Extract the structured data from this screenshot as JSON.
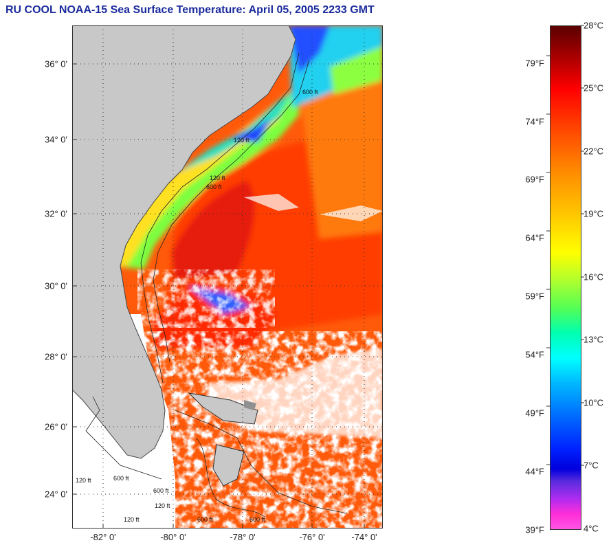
{
  "title": "RU COOL  NOAA-15  Sea Surface Temperature:  April 05, 2005 2233 GMT",
  "map": {
    "lat_labels": [
      "36° 0'",
      "34° 0'",
      "32° 0'",
      "30° 0'",
      "28° 0'",
      "26° 0'",
      "24° 0'"
    ],
    "lon_labels": [
      "-82° 0'",
      "-80° 0'",
      "-78° 0'",
      "-76° 0'",
      "-74° 0'"
    ],
    "contour_labels": [
      "120 ft",
      "600 ft",
      "120 ft",
      "600 ft",
      "120 ft",
      "600 ft",
      "120 ft",
      "600 ft",
      "120 ft",
      "600 ft",
      "600 ft"
    ],
    "colors": {
      "land": "#c8c8c8",
      "cloud": "#ffffff",
      "warm": "#ff3c00",
      "gulf_core": "#e61a10",
      "shelf": "#ffe020",
      "cold": "#2040ff"
    }
  },
  "colorbar": {
    "celsius": [
      "28°C",
      "25°C",
      "22°C",
      "19°C",
      "16°C",
      "13°C",
      "10°C",
      "7°C",
      "4°C"
    ],
    "fahrenheit": [
      "79°F",
      "74°F",
      "69°F",
      "64°F",
      "59°F",
      "54°F",
      "49°F",
      "44°F",
      "39°F"
    ]
  }
}
